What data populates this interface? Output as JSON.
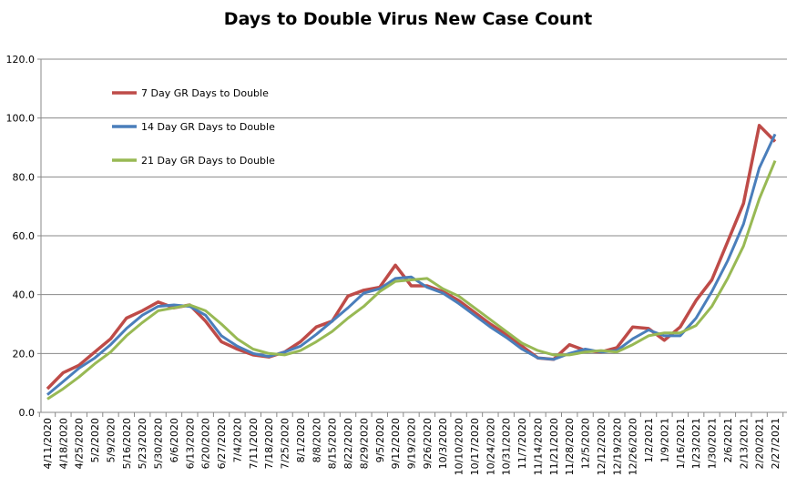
{
  "chart_data": {
    "type": "line",
    "title": "Days to Double Virus New Case Count",
    "xlabel": "",
    "ylabel": "",
    "ylim": [
      0,
      120
    ],
    "yticks": [
      "0.0",
      "20.0",
      "40.0",
      "60.0",
      "80.0",
      "100.0",
      "120.0"
    ],
    "grid": true,
    "legend_position": "top-left",
    "categories": [
      "4/11/2020",
      "4/18/2020",
      "4/25/2020",
      "5/2/2020",
      "5/9/2020",
      "5/16/2020",
      "5/23/2020",
      "5/30/2020",
      "6/6/2020",
      "6/13/2020",
      "6/20/2020",
      "6/27/2020",
      "7/4/2020",
      "7/11/2020",
      "7/18/2020",
      "7/25/2020",
      "8/1/2020",
      "8/8/2020",
      "8/15/2020",
      "8/22/2020",
      "8/29/2020",
      "9/5/2020",
      "9/12/2020",
      "9/19/2020",
      "9/26/2020",
      "10/3/2020",
      "10/10/2020",
      "10/17/2020",
      "10/24/2020",
      "10/31/2020",
      "11/7/2020",
      "11/14/2020",
      "11/21/2020",
      "11/28/2020",
      "12/5/2020",
      "12/12/2020",
      "12/19/2020",
      "12/26/2020",
      "1/2/2021",
      "1/9/2021",
      "1/16/2021",
      "1/23/2021",
      "1/30/2021",
      "2/6/2021",
      "2/13/2021",
      "2/20/2021",
      "2/27/2021"
    ],
    "series": [
      {
        "name": "7 Day GR Days to Double",
        "color": "#be4b48",
        "values": [
          8,
          13.5,
          16,
          20.5,
          25,
          32,
          34.5,
          37.5,
          35.5,
          36.5,
          31,
          24,
          21.5,
          19.5,
          18.8,
          20.5,
          24,
          29,
          31,
          39.5,
          41.5,
          42.5,
          50,
          43,
          43,
          41,
          38,
          34,
          30,
          26.5,
          22.5,
          18.5,
          18,
          23,
          21,
          20.5,
          22,
          29,
          28.5,
          24.5,
          29,
          38,
          45,
          58,
          71,
          97.5,
          92
        ]
      },
      {
        "name": "14 Day GR Days to Double",
        "color": "#4a7ebb",
        "values": [
          6,
          10.5,
          15,
          18.5,
          23,
          28.5,
          33,
          36,
          36.5,
          36,
          33,
          26,
          22.5,
          20,
          19,
          20.5,
          22.5,
          26.5,
          31,
          35.5,
          40.5,
          42,
          45.5,
          46,
          42.5,
          40.5,
          37,
          33,
          29,
          25.5,
          21.5,
          18.5,
          18,
          20,
          21.5,
          20.5,
          21,
          25,
          28,
          26,
          26,
          32,
          41,
          51.5,
          64,
          83,
          94.5
        ]
      },
      {
        "name": "21 Day GR Days to Double",
        "color": "#98b954",
        "values": [
          4.5,
          8,
          12,
          16.5,
          20.5,
          26,
          30.5,
          34.5,
          35.5,
          36.5,
          34.5,
          30,
          25,
          21.5,
          20,
          19.5,
          21,
          24,
          27.5,
          32,
          36,
          41,
          44.5,
          45,
          45.5,
          42,
          39.5,
          35.5,
          31.5,
          27.5,
          23.5,
          21,
          19.5,
          19.5,
          20.5,
          21,
          20.5,
          23,
          26,
          27,
          27,
          29.5,
          36,
          45.5,
          56.5,
          72.5,
          85.5
        ]
      }
    ]
  }
}
